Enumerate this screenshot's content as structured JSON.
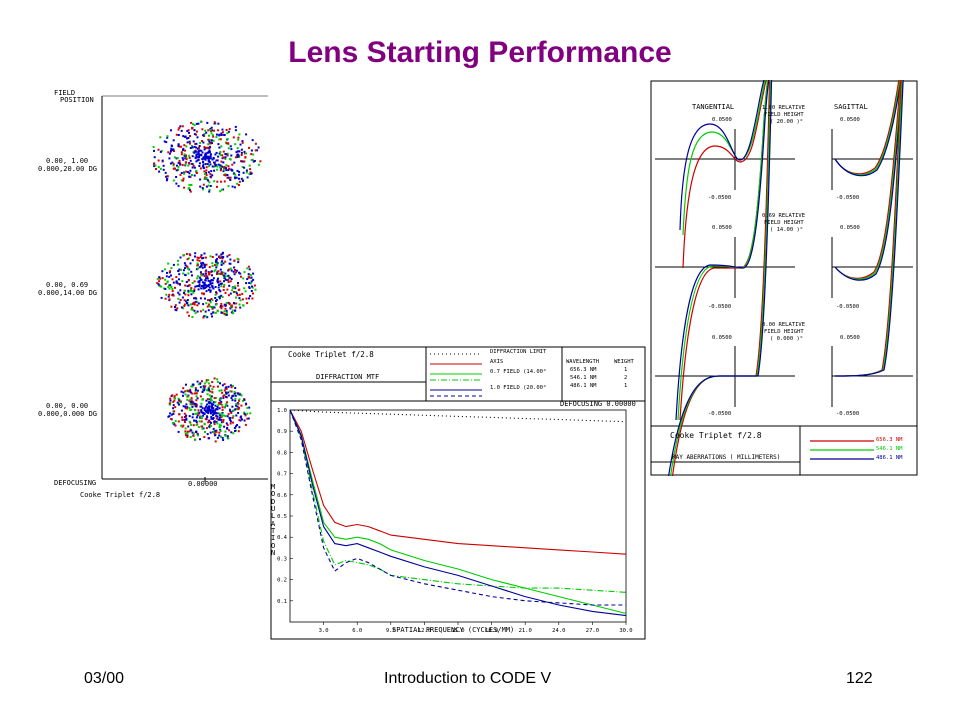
{
  "slide": {
    "title": "Lens Starting Performance",
    "footer_left": "03/00",
    "footer_center": "Introduction to CODE V",
    "footer_right": "122"
  },
  "spot_panel": {
    "field_header_1": "FIELD",
    "field_header_2": "POSITION",
    "fields": [
      {
        "line1": "0.00, 1.00",
        "line2": "0.000,20.00 DG"
      },
      {
        "line1": "0.00, 0.69",
        "line2": "0.000,14.00 DG"
      },
      {
        "line1": "0.00, 0.00",
        "line2": "0.000,0.000 DG"
      }
    ],
    "defocus_label": "DEFOCUSING",
    "defocus_value": "0.00000",
    "lens_name": "Cooke Triplet f/2.8",
    "colors": {
      "red": "#e00000",
      "green": "#00cc00",
      "blue": "#0000cc"
    }
  },
  "ray_panel": {
    "tangential_label": "TANGENTIAL",
    "sagittal_label": "SAGITTAL",
    "fields": [
      {
        "line1": "1.00 RELATIVE",
        "line2": "FIELD HEIGHT",
        "line3": "( 20.00 )°"
      },
      {
        "line1": "0.69 RELATIVE",
        "line2": "FIELD HEIGHT",
        "line3": "( 14.00 )°"
      },
      {
        "line1": "0.00 RELATIVE",
        "line2": "FIELD HEIGHT",
        "line3": "( 0.000 )°"
      }
    ],
    "tick_top": "0.0500",
    "tick_bottom": "-0.0500",
    "lens_name": "Cooke Triplet f/2.8",
    "caption": "RAY ABERRATIONS ( MILLIMETERS)",
    "legend": [
      {
        "label": "656.3 NM",
        "color": "#cc0000"
      },
      {
        "label": "546.1 NM",
        "color": "#00cc00"
      },
      {
        "label": "486.1 NM",
        "color": "#000099"
      }
    ]
  },
  "mtf_panel": {
    "lens_name": "Cooke Triplet f/2.8",
    "subtitle": "DIFFRACTION MTF",
    "legend": [
      {
        "label": "DIFFRACTION LIMIT",
        "dash": "1 3",
        "color": "#000000"
      },
      {
        "label": "AXIS",
        "dash": "",
        "color": "#cc0000"
      },
      {
        "label": "0.7 FIELD (14.00°",
        "dash": "",
        "color": "#00cc00"
      },
      {
        "label": "",
        "dash": "6 2 1 2",
        "color": "#00cc00"
      },
      {
        "label": "1.0 FIELD (20.00°",
        "dash": "",
        "color": "#000099"
      },
      {
        "label": "",
        "dash": "4 3",
        "color": "#000099"
      }
    ],
    "wavelength_header": "WAVELENGTH",
    "weight_header": "WEIGHT",
    "wavelengths": [
      {
        "wl": "656.3 NM",
        "weight": "1"
      },
      {
        "wl": "546.1 NM",
        "weight": "2"
      },
      {
        "wl": "486.1 NM",
        "weight": "1"
      }
    ],
    "defocusing": "DEFOCUSING 0.00000",
    "ylabel": "MODULATION",
    "xlabel": "SPATIAL FREQUENCY (CYCLES/MM)"
  },
  "chart_data": {
    "type": "line",
    "title": "DIFFRACTION MTF",
    "xlabel": "SPATIAL FREQUENCY (CYCLES/MM)",
    "ylabel": "MODULATION",
    "xlim": [
      0,
      30
    ],
    "ylim": [
      0,
      1
    ],
    "x_ticks": [
      "3.0",
      "6.0",
      "9.0",
      "12.0",
      "15.0",
      "18.0",
      "21.0",
      "24.0",
      "27.0",
      "30.0"
    ],
    "y_ticks": [
      "0.1",
      "0.2",
      "0.3",
      "0.4",
      "0.5",
      "0.6",
      "0.7",
      "0.8",
      "0.9",
      "1.0"
    ],
    "series": [
      {
        "name": "DIFFRACTION LIMIT",
        "color": "#000000",
        "dash": "1 3",
        "x": [
          0,
          3,
          6,
          9,
          12,
          15,
          18,
          21,
          24,
          27,
          30
        ],
        "y": [
          1.0,
          0.99,
          0.985,
          0.98,
          0.975,
          0.97,
          0.965,
          0.96,
          0.955,
          0.95,
          0.945
        ]
      },
      {
        "name": "AXIS",
        "color": "#cc0000",
        "dash": "",
        "x": [
          0,
          1,
          2,
          3,
          4,
          5,
          6,
          7,
          8,
          9,
          12,
          15,
          18,
          21,
          24,
          27,
          30
        ],
        "y": [
          1.0,
          0.9,
          0.72,
          0.55,
          0.47,
          0.45,
          0.46,
          0.45,
          0.43,
          0.41,
          0.39,
          0.37,
          0.36,
          0.35,
          0.34,
          0.33,
          0.32
        ]
      },
      {
        "name": "0.7 FIELD (14.00°",
        "color": "#00cc00",
        "dash": "",
        "x": [
          0,
          1,
          2,
          3,
          4,
          5,
          6,
          7,
          8,
          9,
          12,
          15,
          18,
          21,
          24,
          27,
          30
        ],
        "y": [
          1.0,
          0.88,
          0.67,
          0.47,
          0.4,
          0.39,
          0.4,
          0.39,
          0.37,
          0.34,
          0.29,
          0.25,
          0.2,
          0.16,
          0.12,
          0.08,
          0.04
        ]
      },
      {
        "name": "",
        "color": "#00cc00",
        "dash": "6 2 1 2",
        "x": [
          0,
          1,
          2,
          3,
          4,
          5,
          6,
          7,
          8,
          9,
          12,
          15,
          18,
          21,
          24,
          27,
          30
        ],
        "y": [
          1.0,
          0.87,
          0.62,
          0.38,
          0.27,
          0.29,
          0.28,
          0.27,
          0.25,
          0.22,
          0.2,
          0.18,
          0.17,
          0.16,
          0.16,
          0.15,
          0.14
        ]
      },
      {
        "name": "1.0 FIELD (20.00°",
        "color": "#000099",
        "dash": "",
        "x": [
          0,
          1,
          2,
          3,
          4,
          5,
          6,
          7,
          8,
          9,
          12,
          15,
          18,
          21,
          24,
          27,
          30
        ],
        "y": [
          1.0,
          0.88,
          0.65,
          0.45,
          0.37,
          0.36,
          0.37,
          0.35,
          0.33,
          0.31,
          0.26,
          0.22,
          0.17,
          0.12,
          0.08,
          0.05,
          0.03
        ]
      },
      {
        "name": "",
        "color": "#000099",
        "dash": "4 3",
        "x": [
          0,
          1,
          2,
          3,
          4,
          5,
          6,
          7,
          8,
          9,
          12,
          15,
          18,
          21,
          24,
          27,
          30
        ],
        "y": [
          1.0,
          0.86,
          0.6,
          0.35,
          0.24,
          0.28,
          0.3,
          0.28,
          0.25,
          0.22,
          0.18,
          0.15,
          0.12,
          0.1,
          0.09,
          0.08,
          0.08
        ]
      }
    ]
  }
}
